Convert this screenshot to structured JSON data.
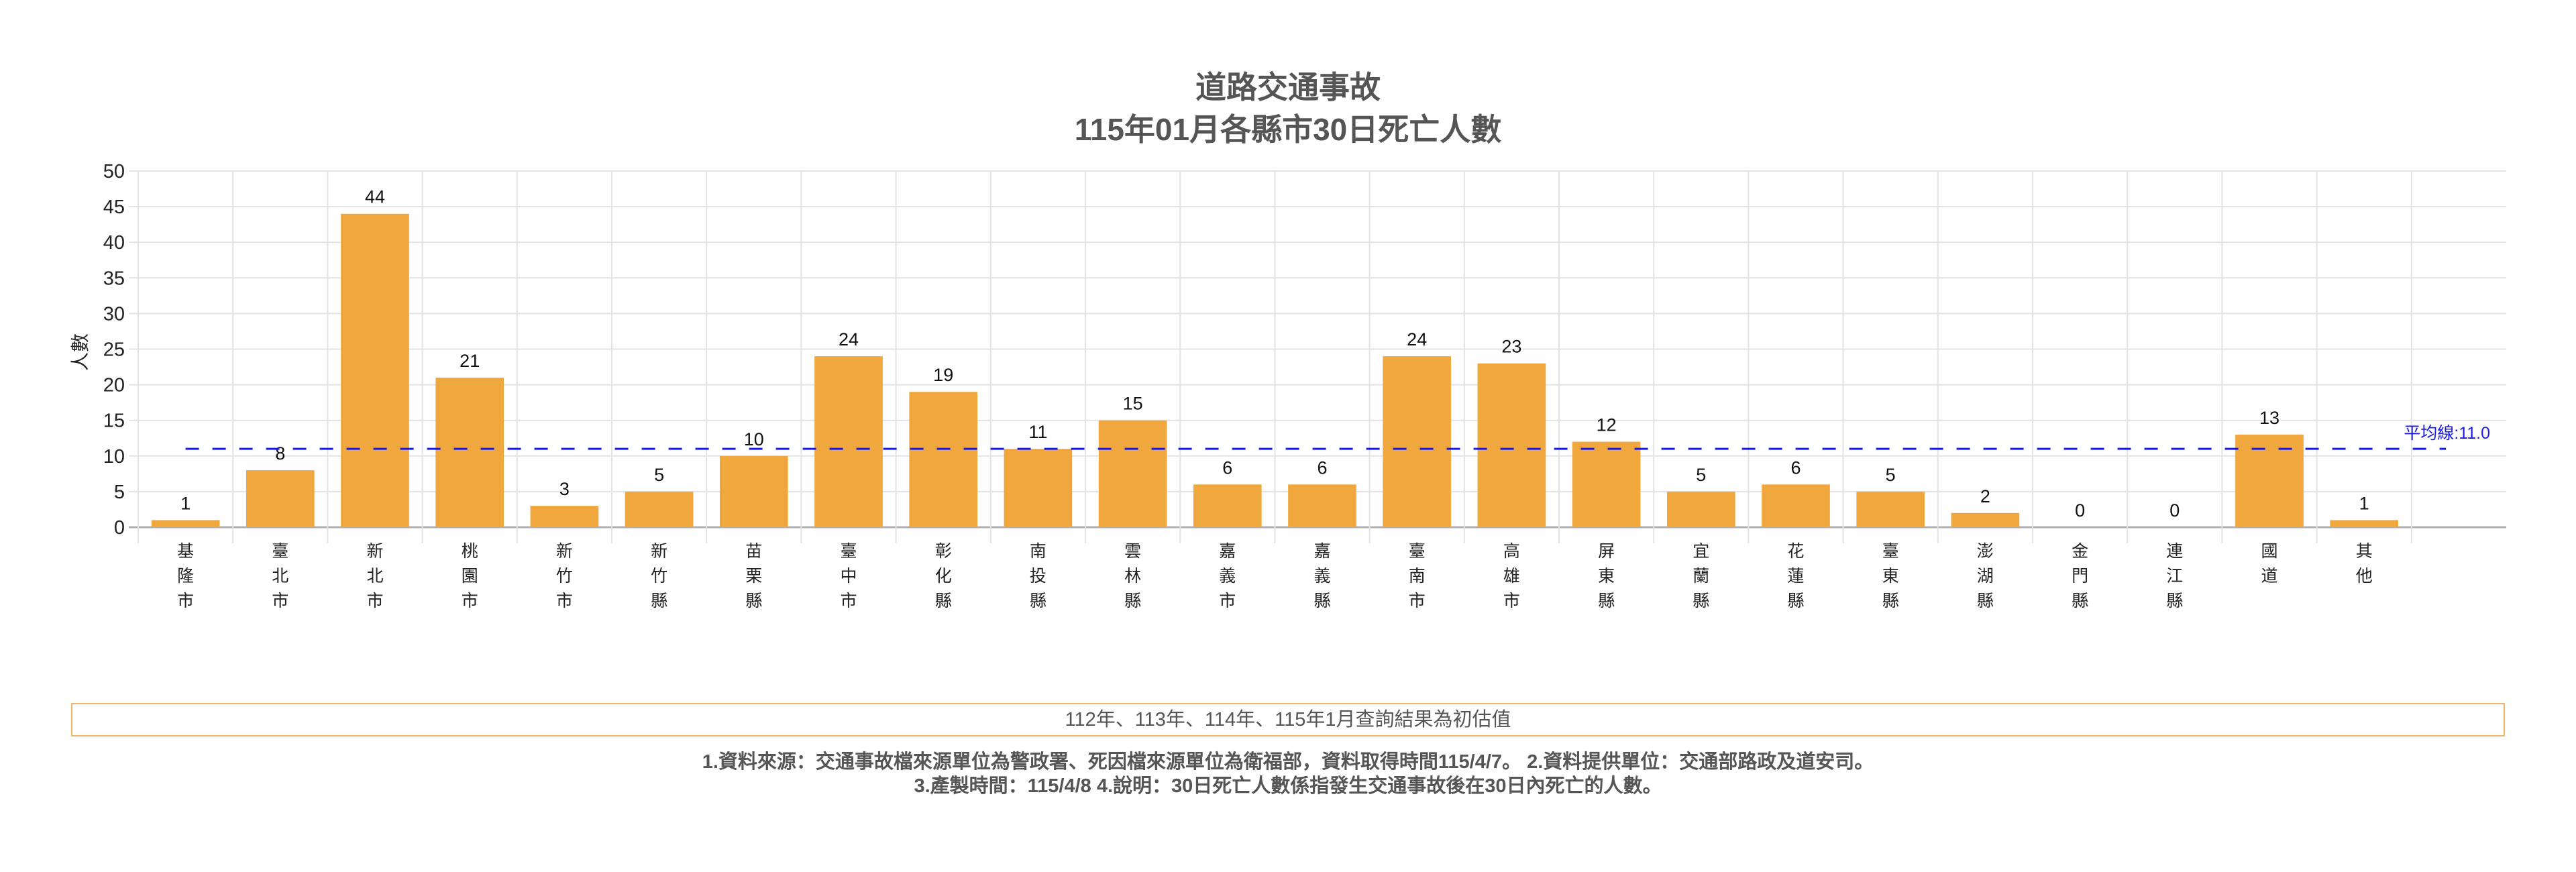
{
  "title": {
    "line1": "道路交通事故",
    "line2": "115年01月各縣市30日死亡人數"
  },
  "colors": {
    "bar": "#F0A83E",
    "average_line": "#1a1ae6",
    "grid": "#e3e3e3",
    "axis": "#b0b0b0",
    "note_border": "#f2b56b",
    "title_text": "#555555"
  },
  "chart_data": {
    "type": "bar",
    "title": "道路交通事故 115年01月各縣市30日死亡人數",
    "xlabel": "",
    "ylabel": "人數",
    "ylim": [
      0,
      50
    ],
    "yticks": [
      0,
      5,
      10,
      15,
      20,
      25,
      30,
      35,
      40,
      45,
      50
    ],
    "grid": true,
    "legend": null,
    "categories": [
      "基隆市",
      "臺北市",
      "新北市",
      "桃園市",
      "新竹市",
      "新竹縣",
      "苗栗縣",
      "臺中市",
      "彰化縣",
      "南投縣",
      "雲林縣",
      "嘉義市",
      "嘉義縣",
      "臺南市",
      "高雄市",
      "屏東縣",
      "宜蘭縣",
      "花蓮縣",
      "臺東縣",
      "澎湖縣",
      "金門縣",
      "連江縣",
      "國道",
      "其他"
    ],
    "values": [
      1,
      8,
      44,
      21,
      3,
      5,
      10,
      24,
      19,
      11,
      15,
      6,
      6,
      24,
      23,
      12,
      5,
      6,
      5,
      2,
      0,
      0,
      13,
      1
    ],
    "annotations": [
      {
        "type": "hline",
        "y": 11.0,
        "label": "平均線:11.0",
        "style": "dashed"
      }
    ]
  },
  "note": "112年、113年、114年、115年1月查詢結果為初估值",
  "footer": {
    "line1": "1.資料來源：交通事故檔來源單位為警政署、死因檔來源單位為衛福部，資料取得時間115/4/7。 2.資料提供單位：交通部路政及道安司。",
    "line2": "3.產製時間：115/4/8 4.說明：30日死亡人數係指發生交通事故後在30日內死亡的人數。"
  }
}
